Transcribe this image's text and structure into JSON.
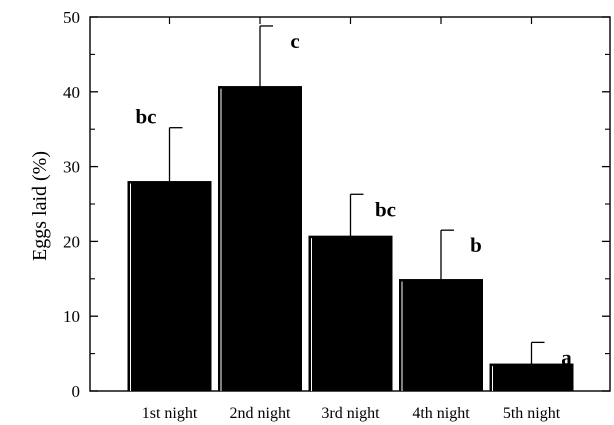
{
  "chart_data": {
    "type": "bar",
    "title": "",
    "xlabel": "",
    "ylabel": "Eggs laid (%)",
    "ylim": [
      0,
      50
    ],
    "yticks": [
      0,
      10,
      20,
      30,
      40,
      50
    ],
    "grid": false,
    "categories": [
      "1st night",
      "2nd night",
      "3rd night",
      "4th night",
      "5th night"
    ],
    "values": [
      28,
      40.7,
      20.7,
      14.9,
      3.6
    ],
    "errors": [
      7.2,
      8.1,
      5.6,
      6.6,
      2.9
    ],
    "annotations": [
      "bc",
      "c",
      "bc",
      "b",
      "a"
    ],
    "bar_color": "#000000"
  }
}
